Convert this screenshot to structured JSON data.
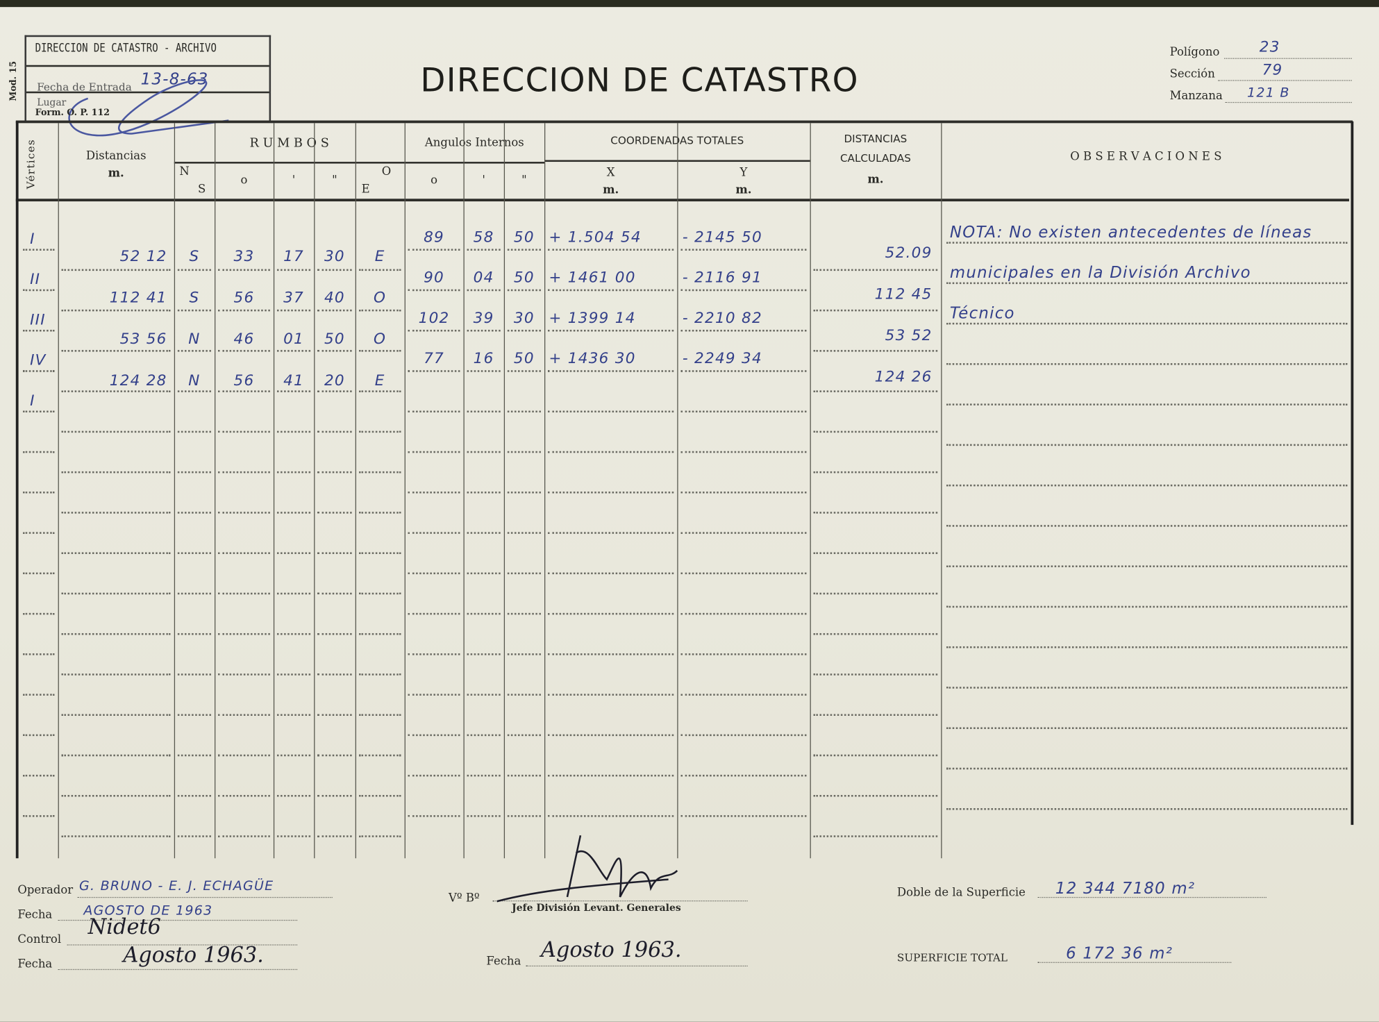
{
  "form": {
    "title": "DIRECCION DE CATASTRO",
    "model_code": "Mod. 15",
    "form_code": "Form. O. P. 112",
    "stamp": {
      "line1": "DIRECCION DE CATASTRO - ARCHIVO",
      "entry_label": "Fecha de Entrada",
      "entry_value": "13-8-63",
      "place_label": "Lugar"
    },
    "poligono": {
      "label": "Polígono",
      "value": "23"
    },
    "seccion": {
      "label": "Sección",
      "value": "79"
    },
    "manzana": {
      "label": "Manzana",
      "value": "121 B"
    }
  },
  "headers": {
    "vertices": "Vértices",
    "distancias": "Distancias",
    "distancias_unit": "m.",
    "rumbos": "R U M B O S",
    "ns_n": "N",
    "ns_s": "S",
    "deg": "o",
    "min": "'",
    "sec": "\"",
    "eo_o": "O",
    "eo_e": "E",
    "angulos": "Angulos Internos",
    "coordenadas": "COORDENADAS TOTALES",
    "x": "X",
    "y": "Y",
    "x_unit": "m.",
    "y_unit": "m.",
    "dist_calc_1": "DISTANCIAS",
    "dist_calc_2": "CALCULADAS",
    "dist_calc_unit": "m.",
    "observaciones": "O B S E R V A C I O N E S"
  },
  "vertices": [
    "I",
    "II",
    "III",
    "IV",
    "I"
  ],
  "sides": [
    {
      "distance": "52 12",
      "ns": "S",
      "deg": "33",
      "min": "17",
      "sec": "30",
      "eo": "E",
      "calc": "52.09"
    },
    {
      "distance": "112 41",
      "ns": "S",
      "deg": "56",
      "min": "37",
      "sec": "40",
      "eo": "O",
      "calc": "112 45"
    },
    {
      "distance": "53 56",
      "ns": "N",
      "deg": "46",
      "min": "01",
      "sec": "50",
      "eo": "O",
      "calc": "53 52"
    },
    {
      "distance": "124 28",
      "ns": "N",
      "deg": "56",
      "min": "41",
      "sec": "20",
      "eo": "E",
      "calc": "124 26"
    }
  ],
  "points": [
    {
      "ang_deg": "89",
      "ang_min": "58",
      "ang_sec": "50",
      "x": "+ 1.504 54",
      "y": "- 2145 50"
    },
    {
      "ang_deg": "90",
      "ang_min": "04",
      "ang_sec": "50",
      "x": "+ 1461 00",
      "y": "- 2116 91"
    },
    {
      "ang_deg": "102",
      "ang_min": "39",
      "ang_sec": "30",
      "x": "+ 1399 14",
      "y": "- 2210 82"
    },
    {
      "ang_deg": "77",
      "ang_min": "16",
      "ang_sec": "50",
      "x": "+ 1436 30",
      "y": "- 2249 34"
    }
  ],
  "observaciones": [
    "NOTA: No existen antecedentes de líneas",
    "municipales en la División Archivo",
    "Técnico"
  ],
  "footer": {
    "operador_label": "Operador",
    "operador_value": "G. BRUNO - E. J. ECHAGÜE",
    "fecha1_label": "Fecha",
    "fecha1_value": "AGOSTO DE 1963",
    "control_label": "Control",
    "control_signature": "Nidet6",
    "fecha2_label": "Fecha",
    "fecha2_value": "Agosto 1963.",
    "vobo_label": "Vº Bº",
    "jefe_label": "Jefe División Levant. Generales",
    "fecha3_label": "Fecha",
    "fecha3_value": "Agosto 1963.",
    "doble_label": "Doble de la Superficie",
    "doble_value": "12 344 7180 m²",
    "total_label": "SUPERFICIE TOTAL",
    "total_value": "6 172 36 m²"
  },
  "colors": {
    "ink": "#33408a",
    "paper": "#ecebe1",
    "print": "#2a2a26"
  }
}
